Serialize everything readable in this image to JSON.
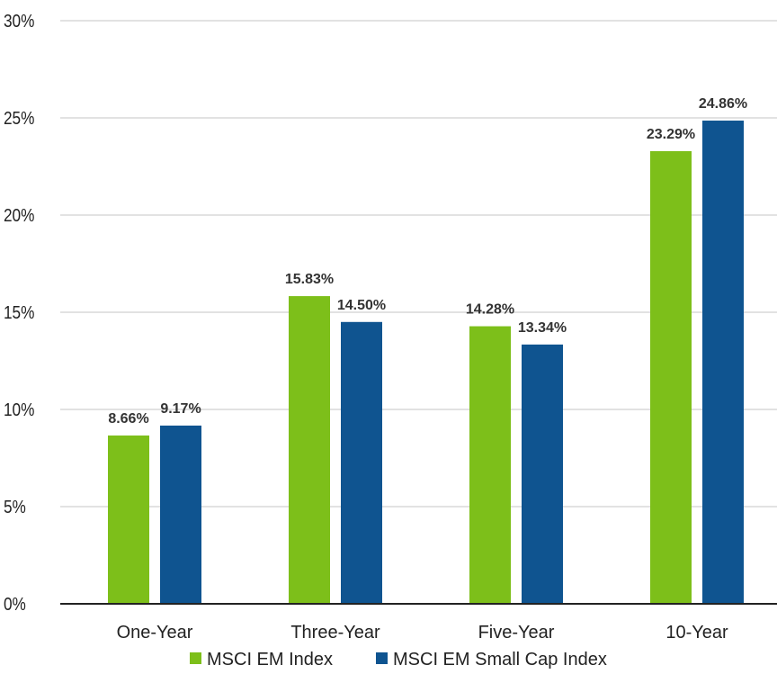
{
  "chart_data": {
    "type": "bar",
    "categories": [
      "One-Year",
      "Three-Year",
      "Five-Year",
      "10-Year"
    ],
    "series": [
      {
        "name": "MSCI EM Index",
        "values": [
          8.66,
          15.83,
          14.28,
          23.29
        ],
        "labels": [
          "8.66%",
          "15.83%",
          "14.28%",
          "23.29%"
        ],
        "color": "#7dbf1a"
      },
      {
        "name": "MSCI EM Small Cap Index",
        "values": [
          9.17,
          14.5,
          13.34,
          24.86
        ],
        "labels": [
          "9.17%",
          "14.50%",
          "13.34%",
          "24.86%"
        ],
        "color": "#0f5490"
      }
    ],
    "yticks": [
      "0%",
      "5%",
      "10%",
      "15%",
      "20%",
      "25%",
      "30%"
    ],
    "ylim": [
      0,
      30
    ],
    "ystep": 5,
    "grid": true,
    "legend_position": "bottom",
    "title": "",
    "xlabel": "",
    "ylabel": ""
  }
}
